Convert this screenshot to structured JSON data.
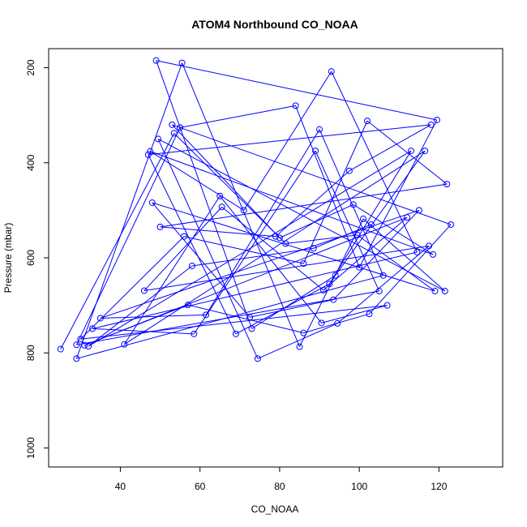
{
  "chart_data": {
    "type": "line",
    "title": "ATOM4 Northbound CO_NOAA",
    "xlabel": "CO_NOAA",
    "ylabel": "Pressure (mbar)",
    "xlim": [
      22,
      136
    ],
    "ylim": [
      1040,
      160
    ],
    "y_reversed": true,
    "xticks": [
      40,
      60,
      80,
      100,
      120
    ],
    "yticks": [
      200,
      400,
      600,
      800,
      1000
    ],
    "grid": false,
    "series": [
      {
        "color": "#0000ff",
        "marker": "open-circle",
        "x": [
          25,
          29,
          29,
          30,
          31,
          32,
          33,
          35,
          41,
          46,
          47,
          47.5,
          48,
          49,
          49.5,
          50,
          53,
          53.5,
          55,
          55.5,
          56,
          57,
          58,
          58.5,
          61.5,
          65,
          65.5,
          69,
          71,
          72.5,
          73,
          74.5,
          79,
          80,
          81.5,
          84,
          85,
          86,
          86,
          88.5,
          89,
          90,
          90.5,
          91,
          92.5,
          93,
          93.5,
          94,
          94.5,
          97.5,
          98.5,
          99.5,
          100,
          101,
          102,
          102.5,
          103,
          105,
          106,
          107,
          112,
          113,
          114.5,
          115,
          116.5,
          117.5,
          118,
          118.5,
          119,
          119.5,
          121.5,
          122,
          123
        ],
        "y": [
          792,
          783,
          812,
          771,
          784,
          786,
          749,
          727,
          782,
          669,
          383,
          376,
          484,
          185,
          350,
          535,
          320,
          338,
          326,
          190,
          555,
          699,
          617,
          760,
          720,
          470,
          493,
          760,
          500,
          725,
          749,
          812,
          555,
          558,
          570,
          280,
          787,
          612,
          758,
          580,
          375,
          330,
          737,
          668,
          655,
          208,
          688,
          637,
          738,
          417,
          488,
          552,
          620,
          518,
          312,
          718,
          530,
          670,
          637,
          700,
          515,
          375,
          588,
          500,
          375,
          575,
          320,
          593,
          670,
          310,
          670,
          445,
          530
        ]
      }
    ]
  }
}
